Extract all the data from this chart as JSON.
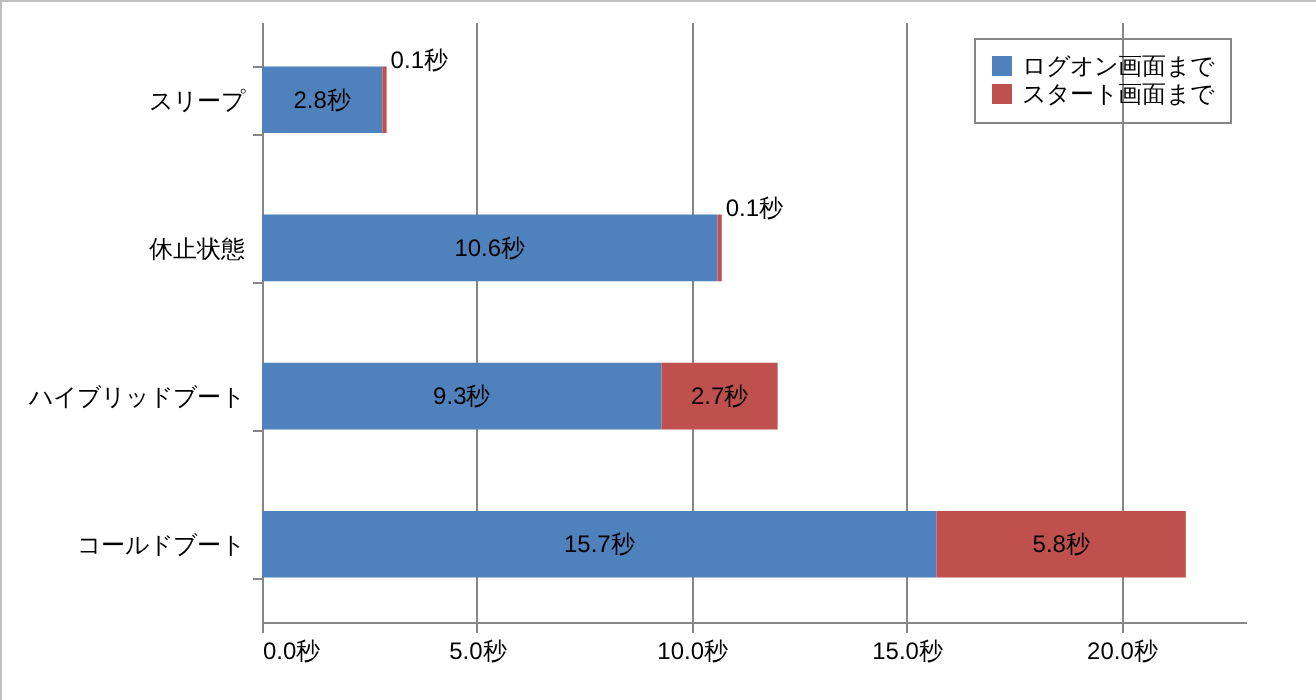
{
  "chart_data": {
    "type": "bar",
    "orientation": "horizontal",
    "stacked": true,
    "categories": [
      "スリープ",
      "休止状態",
      "ハイブリッドブート",
      "コールドブート"
    ],
    "series": [
      {
        "name": "ログオン画面まで",
        "color": "#4f81bd",
        "values": [
          2.8,
          10.6,
          9.3,
          15.7
        ],
        "value_labels": [
          "2.8秒",
          "10.6秒",
          "9.3秒",
          "15.7秒"
        ]
      },
      {
        "name": "スタート画面まで",
        "color": "#c0504d",
        "values": [
          0.1,
          0.1,
          2.7,
          5.8
        ],
        "value_labels": [
          "0.1秒",
          "0.1秒",
          "2.7秒",
          "5.8秒"
        ]
      }
    ],
    "xlim": [
      0,
      22.9
    ],
    "xticks": [
      {
        "value": 0,
        "label": "0.0秒"
      },
      {
        "value": 5,
        "label": "5.0秒"
      },
      {
        "value": 10,
        "label": "10.0秒"
      },
      {
        "value": 15,
        "label": "15.0秒"
      },
      {
        "value": 20,
        "label": "20.0秒"
      }
    ],
    "grid": "x",
    "legend": "top right"
  }
}
